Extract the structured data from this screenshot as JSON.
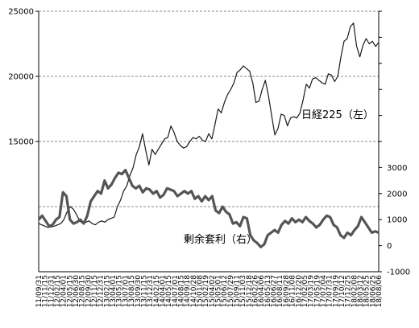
{
  "chart_data": {
    "type": "line",
    "grid": "horizontal dashed lines at 15000, 20000, 25000 and one mid-level line",
    "left_axis": {
      "range": [
        5000,
        25000
      ],
      "ticks": [
        "25000",
        "20000",
        "15000"
      ],
      "tick_values": [
        25000,
        20000,
        15000
      ]
    },
    "right_axis": {
      "range": [
        -1000,
        9000
      ],
      "ticks": [
        "3000",
        "2000",
        "1000",
        "0",
        "-1000"
      ],
      "tick_values": [
        3000,
        2000,
        1000,
        0,
        -1000
      ]
    },
    "x_tick_labels": [
      "11/09/31",
      "11/11/15",
      "11/12/31",
      "12/02/15",
      "12/04/01",
      "12/05/15",
      "12/06/30",
      "12/08/15",
      "12/09/30",
      "12/11/15",
      "12/12/31",
      "13/02/15",
      "13/04/01",
      "13/05/15",
      "13/07/01",
      "13/08/15",
      "13/09/30",
      "13/11/15",
      "13/12/31",
      "14/02/15",
      "14/04/01",
      "14/05/15",
      "14/07/01",
      "14/08/15",
      "14/09/18",
      "14/10/28",
      "15/01/08",
      "15/02/19",
      "15/04/02",
      "15/05/01",
      "15/06/12",
      "15/07/29",
      "15/09/11",
      "15/11/03",
      "15/12/18",
      "16/02/26",
      "16/04/06",
      "16/05/13",
      "16/06/27",
      "16/08/11",
      "16/09/28",
      "16/11/08",
      "16/12/20",
      "17/02/05",
      "17/03/19",
      "17/05/19",
      "17/07/04",
      "17/07/31",
      "17/09/19",
      "17/10/12",
      "17/12/25",
      "18/02/08",
      "18/03/12",
      "18/05/25",
      "18/06/25",
      "18/08/06"
    ],
    "x_label_count": 56,
    "series": [
      {
        "name": "日経225（左）",
        "axis": "left",
        "color": "#1a1a1a",
        "values": [
          8700,
          8600,
          8500,
          8400,
          8450,
          8500,
          8600,
          8700,
          9000,
          9600,
          10000,
          9800,
          9400,
          8900,
          8700,
          8800,
          8900,
          8700,
          8600,
          8800,
          8900,
          8800,
          9000,
          9100,
          9200,
          10000,
          10500,
          11200,
          11600,
          12400,
          13000,
          14000,
          14600,
          15600,
          14300,
          13200,
          14400,
          14000,
          14400,
          14800,
          15200,
          15300,
          16200,
          15700,
          15000,
          14700,
          14500,
          14600,
          15000,
          15300,
          15200,
          15400,
          15100,
          15000,
          15600,
          15200,
          16300,
          17500,
          17200,
          18000,
          18600,
          19000,
          19500,
          20300,
          20500,
          20800,
          20600,
          20400,
          19500,
          18000,
          18100,
          19000,
          19700,
          18500,
          17000,
          15500,
          16000,
          17100,
          17000,
          16200,
          16800,
          16900,
          16800,
          17200,
          18200,
          19400,
          19100,
          19800,
          19900,
          19700,
          19500,
          19400,
          20200,
          20100,
          19600,
          20000,
          21500,
          22700,
          22900,
          23800,
          24100,
          22300,
          21500,
          22400,
          22900,
          22500,
          22700,
          22300,
          22600
        ]
      },
      {
        "name": "剰余套利（右）",
        "axis": "right",
        "color": "#555555",
        "values": [
          1000,
          1150,
          950,
          750,
          800,
          1000,
          1100,
          2050,
          1900,
          1000,
          850,
          900,
          1000,
          850,
          1150,
          1700,
          1900,
          2100,
          2000,
          2500,
          2200,
          2350,
          2600,
          2800,
          2750,
          2900,
          2600,
          2300,
          2200,
          2300,
          2050,
          2200,
          2150,
          2000,
          2100,
          1850,
          1950,
          2200,
          2150,
          2100,
          1900,
          2000,
          2100,
          2000,
          2100,
          1800,
          1900,
          1700,
          1900,
          1750,
          1900,
          1350,
          1250,
          1500,
          1300,
          1200,
          850,
          900,
          750,
          1100,
          1050,
          400,
          200,
          100,
          -50,
          50,
          400,
          500,
          600,
          500,
          800,
          950,
          850,
          1050,
          900,
          1000,
          900,
          1100,
          950,
          850,
          700,
          800,
          1000,
          1150,
          1100,
          800,
          700,
          400,
          300,
          500,
          400,
          600,
          750,
          1100,
          900,
          700,
          500,
          550,
          500
        ]
      }
    ]
  }
}
